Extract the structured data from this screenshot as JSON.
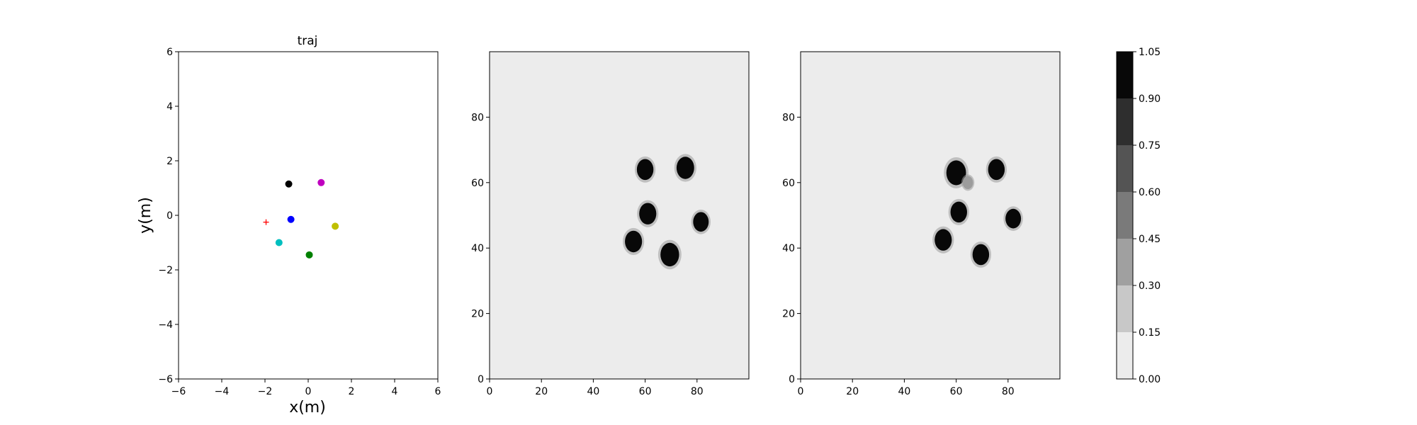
{
  "chart_data": [
    {
      "type": "scatter",
      "title": "traj",
      "xlabel": "x(m)",
      "ylabel": "y(m)",
      "xlim": [
        -6,
        6
      ],
      "ylim": [
        -6,
        6
      ],
      "xticks": [
        "−6",
        "−4",
        "−2",
        "0",
        "2",
        "4",
        "6"
      ],
      "yticks": [
        "−6",
        "−4",
        "−2",
        "0",
        "2",
        "4",
        "6"
      ],
      "grid": false,
      "points": [
        {
          "x": -0.9,
          "y": 1.15,
          "color": "#000000",
          "marker": "circle"
        },
        {
          "x": 0.6,
          "y": 1.2,
          "color": "#bf00bf",
          "marker": "circle"
        },
        {
          "x": -0.8,
          "y": -0.15,
          "color": "#0000ff",
          "marker": "circle"
        },
        {
          "x": 1.25,
          "y": -0.4,
          "color": "#bfbf00",
          "marker": "circle"
        },
        {
          "x": -1.35,
          "y": -1.0,
          "color": "#00bfbf",
          "marker": "circle"
        },
        {
          "x": 0.05,
          "y": -1.45,
          "color": "#008000",
          "marker": "circle"
        },
        {
          "x": -1.95,
          "y": -0.25,
          "color": "#ff0000",
          "marker": "plus"
        }
      ]
    },
    {
      "type": "heatmap",
      "title": "",
      "xlim": [
        0,
        100
      ],
      "ylim": [
        0,
        100
      ],
      "xticks": [
        "0",
        "20",
        "40",
        "60",
        "80"
      ],
      "yticks": [
        "0",
        "20",
        "40",
        "60",
        "80"
      ],
      "background_level": 0.05,
      "blobs": [
        {
          "x": 60,
          "y": 64,
          "r": 3.2,
          "value": 1.0
        },
        {
          "x": 75.5,
          "y": 64.5,
          "r": 3.4,
          "value": 1.0
        },
        {
          "x": 61,
          "y": 50.5,
          "r": 3.3,
          "value": 1.0
        },
        {
          "x": 81.5,
          "y": 48,
          "r": 3.0,
          "value": 1.0
        },
        {
          "x": 55.5,
          "y": 42,
          "r": 3.3,
          "value": 1.0
        },
        {
          "x": 69.5,
          "y": 38,
          "r": 3.6,
          "value": 1.0
        }
      ]
    },
    {
      "type": "heatmap",
      "title": "",
      "xlim": [
        0,
        100
      ],
      "ylim": [
        0,
        100
      ],
      "xticks": [
        "0",
        "20",
        "40",
        "60",
        "80"
      ],
      "yticks": [
        "0",
        "20",
        "40",
        "60",
        "80"
      ],
      "background_level": 0.05,
      "blobs": [
        {
          "x": 60,
          "y": 63,
          "r": 3.8,
          "value": 1.0
        },
        {
          "x": 64.5,
          "y": 60,
          "r": 2.0,
          "value": 0.35
        },
        {
          "x": 75.5,
          "y": 64,
          "r": 3.2,
          "value": 1.0
        },
        {
          "x": 61,
          "y": 51,
          "r": 3.2,
          "value": 1.0
        },
        {
          "x": 82,
          "y": 49,
          "r": 3.0,
          "value": 1.0
        },
        {
          "x": 55,
          "y": 42.5,
          "r": 3.3,
          "value": 1.0
        },
        {
          "x": 69.5,
          "y": 38,
          "r": 3.2,
          "value": 1.0
        }
      ]
    },
    {
      "type": "colorbar",
      "levels": [
        0.0,
        0.15,
        0.3,
        0.45,
        0.6,
        0.75,
        0.9,
        1.05
      ],
      "tick_labels": [
        "0.00",
        "0.15",
        "0.30",
        "0.45",
        "0.60",
        "0.75",
        "0.90",
        "1.05"
      ],
      "colors": [
        "#ececec",
        "#c8c8c8",
        "#a0a0a0",
        "#7a7a7a",
        "#545454",
        "#2e2e2e",
        "#080808"
      ]
    }
  ]
}
